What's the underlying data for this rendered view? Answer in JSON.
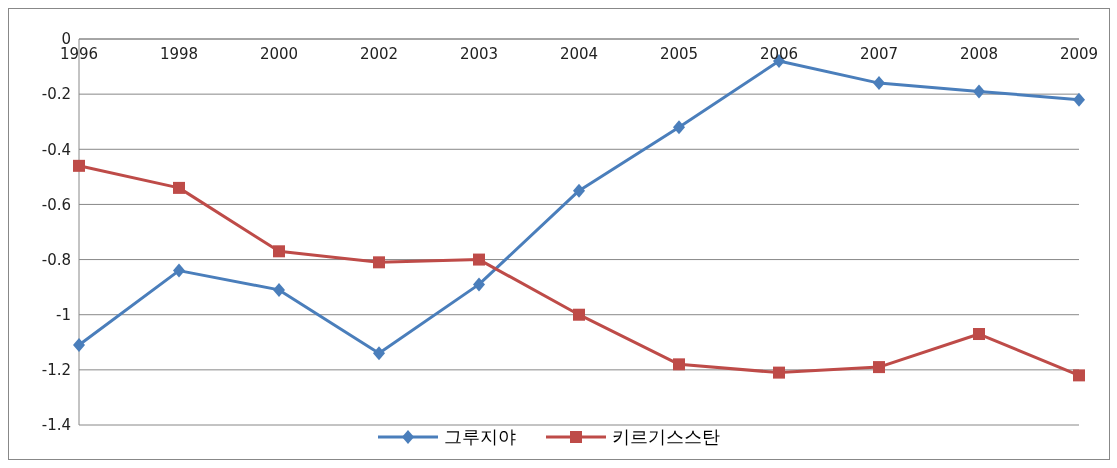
{
  "chart_data": {
    "type": "line",
    "categories": [
      "1996",
      "1998",
      "2000",
      "2002",
      "2003",
      "2004",
      "2005",
      "2006",
      "2007",
      "2008",
      "2009"
    ],
    "series": [
      {
        "name": "그루지야",
        "color": "#4a7ebb",
        "marker": "diamond",
        "values": [
          -1.11,
          -0.84,
          -0.91,
          -1.14,
          -0.89,
          -0.55,
          -0.32,
          -0.08,
          -0.16,
          -0.19,
          -0.22
        ]
      },
      {
        "name": "키르기스스탄",
        "color": "#be4b48",
        "marker": "square",
        "values": [
          -0.46,
          -0.54,
          -0.77,
          -0.81,
          -0.8,
          -1.0,
          -1.18,
          -1.21,
          -1.19,
          -1.07,
          -1.22
        ]
      }
    ],
    "ylim": [
      -1.4,
      0
    ],
    "yticks": [
      0,
      -0.2,
      -0.4,
      -0.6,
      -0.8,
      -1,
      -1.2,
      -1.4
    ],
    "grid": "y",
    "legend": "bottom"
  }
}
